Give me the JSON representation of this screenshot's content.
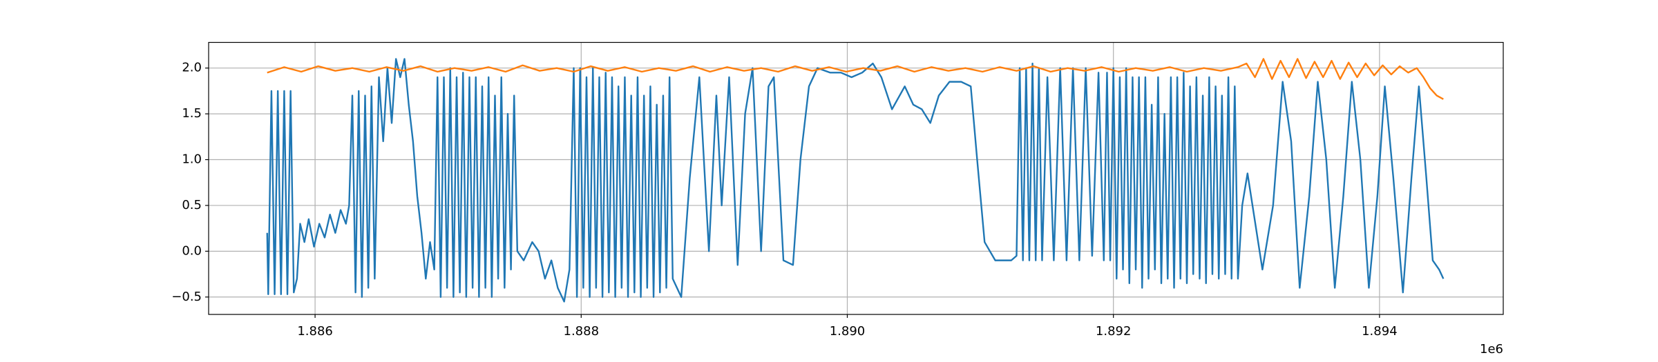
{
  "chart_data": {
    "type": "line",
    "x_offset_label": "1e6",
    "xlim": [
      1885200,
      1894930
    ],
    "ylim": [
      -0.69,
      2.28
    ],
    "xticks": [
      {
        "value": 1886000,
        "label": "1.886"
      },
      {
        "value": 1888000,
        "label": "1.888"
      },
      {
        "value": 1890000,
        "label": "1.890"
      },
      {
        "value": 1892000,
        "label": "1.892"
      },
      {
        "value": 1894000,
        "label": "1.894"
      }
    ],
    "yticks": [
      {
        "value": -0.5,
        "label": "−0.5"
      },
      {
        "value": 0,
        "label": "0.0"
      },
      {
        "value": 0.5,
        "label": "0.5"
      },
      {
        "value": 1,
        "label": "1.0"
      },
      {
        "value": 1.5,
        "label": "1.5"
      },
      {
        "value": 2,
        "label": "2.0"
      }
    ],
    "grid": true,
    "series": [
      {
        "color": "#1f77b4",
        "x": [
          1885640,
          1885648,
          1885672,
          1885696,
          1885720,
          1885744,
          1885768,
          1885792,
          1885816,
          1885840,
          1885864,
          1885888,
          1885920,
          1885952,
          1885992,
          1886032,
          1886072,
          1886112,
          1886152,
          1886192,
          1886232,
          1886256,
          1886280,
          1886304,
          1886328,
          1886352,
          1886376,
          1886400,
          1886424,
          1886448,
          1886480,
          1886512,
          1886544,
          1886576,
          1886608,
          1886640,
          1886672,
          1886704,
          1886736,
          1886768,
          1886800,
          1886832,
          1886864,
          1886896,
          1886920,
          1886944,
          1886968,
          1886992,
          1887016,
          1887040,
          1887064,
          1887088,
          1887112,
          1887136,
          1887160,
          1887184,
          1887208,
          1887232,
          1887256,
          1887280,
          1887304,
          1887328,
          1887352,
          1887376,
          1887400,
          1887424,
          1887448,
          1887472,
          1887496,
          1887520,
          1887568,
          1887632,
          1887680,
          1887728,
          1887776,
          1887824,
          1887872,
          1887912,
          1887944,
          1887968,
          1887992,
          1888016,
          1888040,
          1888064,
          1888088,
          1888112,
          1888136,
          1888160,
          1888184,
          1888208,
          1888232,
          1888256,
          1888280,
          1888304,
          1888328,
          1888352,
          1888376,
          1888400,
          1888424,
          1888448,
          1888472,
          1888496,
          1888520,
          1888544,
          1888568,
          1888592,
          1888616,
          1888640,
          1888664,
          1888688,
          1888752,
          1888816,
          1888888,
          1888960,
          1889016,
          1889056,
          1889112,
          1889176,
          1889232,
          1889288,
          1889352,
          1889408,
          1889448,
          1889520,
          1889592,
          1889648,
          1889712,
          1889776,
          1889872,
          1889952,
          1890032,
          1890112,
          1890192,
          1890256,
          1890336,
          1890432,
          1890496,
          1890560,
          1890624,
          1890688,
          1890768,
          1890856,
          1890928,
          1890976,
          1891032,
          1891112,
          1891232,
          1891272,
          1891296,
          1891320,
          1891344,
          1891368,
          1891392,
          1891416,
          1891440,
          1891464,
          1891504,
          1891552,
          1891600,
          1891648,
          1891696,
          1891744,
          1891792,
          1891840,
          1891888,
          1891928,
          1891952,
          1891976,
          1892000,
          1892024,
          1892048,
          1892072,
          1892096,
          1892120,
          1892144,
          1892168,
          1892192,
          1892216,
          1892240,
          1892264,
          1892288,
          1892312,
          1892336,
          1892360,
          1892384,
          1892408,
          1892432,
          1892456,
          1892480,
          1892504,
          1892528,
          1892552,
          1892576,
          1892600,
          1892624,
          1892648,
          1892672,
          1892696,
          1892720,
          1892744,
          1892768,
          1892792,
          1892816,
          1892840,
          1892864,
          1892888,
          1892912,
          1892936,
          1892968,
          1893008,
          1893056,
          1893120,
          1893200,
          1893272,
          1893336,
          1893400,
          1893472,
          1893536,
          1893600,
          1893664,
          1893728,
          1893792,
          1893856,
          1893920,
          1893984,
          1894040,
          1894104,
          1894176,
          1894240,
          1894296,
          1894352,
          1894400,
          1894448,
          1894480
        ],
        "values": [
          0.2,
          -0.47,
          1.75,
          -0.47,
          1.75,
          -0.47,
          1.75,
          -0.47,
          1.75,
          -0.45,
          -0.3,
          0.3,
          0.1,
          0.35,
          0.05,
          0.3,
          0.15,
          0.4,
          0.2,
          0.45,
          0.3,
          0.5,
          1.7,
          -0.45,
          1.75,
          -0.5,
          1.7,
          -0.4,
          1.8,
          -0.3,
          1.9,
          1.2,
          2.0,
          1.4,
          2.1,
          1.9,
          2.1,
          1.6,
          1.2,
          0.6,
          0.2,
          -0.3,
          0.1,
          -0.2,
          1.9,
          -0.5,
          1.9,
          -0.4,
          2.0,
          -0.5,
          1.9,
          -0.45,
          1.95,
          -0.5,
          1.9,
          -0.4,
          1.9,
          -0.5,
          1.8,
          -0.4,
          1.9,
          -0.5,
          1.7,
          -0.3,
          1.9,
          -0.4,
          1.5,
          -0.2,
          1.7,
          0.0,
          -0.1,
          0.1,
          0.0,
          -0.3,
          -0.1,
          -0.4,
          -0.55,
          -0.2,
          2.0,
          -0.5,
          2.0,
          -0.4,
          1.9,
          -0.5,
          2.0,
          -0.4,
          1.9,
          -0.5,
          1.95,
          -0.45,
          1.9,
          -0.5,
          1.8,
          -0.4,
          1.9,
          -0.5,
          1.7,
          -0.45,
          1.9,
          -0.5,
          1.7,
          -0.4,
          1.8,
          -0.5,
          1.6,
          -0.45,
          1.7,
          -0.4,
          1.9,
          -0.3,
          -0.5,
          0.8,
          1.9,
          0.0,
          1.7,
          0.5,
          1.9,
          -0.15,
          1.5,
          2.0,
          0.0,
          1.8,
          1.9,
          -0.1,
          -0.15,
          1.0,
          1.8,
          2.0,
          1.95,
          1.95,
          1.9,
          1.95,
          2.05,
          1.9,
          1.55,
          1.8,
          1.6,
          1.55,
          1.4,
          1.7,
          1.85,
          1.85,
          1.8,
          1.0,
          0.1,
          -0.1,
          -0.1,
          -0.05,
          2.0,
          -0.1,
          2.0,
          -0.1,
          2.05,
          -0.1,
          2.0,
          -0.1,
          1.9,
          -0.1,
          2.0,
          -0.1,
          2.0,
          -0.1,
          2.0,
          -0.05,
          1.95,
          -0.1,
          1.95,
          -0.1,
          2.0,
          -0.3,
          1.9,
          -0.2,
          2.0,
          -0.35,
          1.9,
          -0.2,
          1.9,
          -0.4,
          1.9,
          -0.3,
          1.6,
          -0.2,
          1.9,
          -0.35,
          1.5,
          -0.3,
          1.9,
          -0.4,
          1.9,
          -0.3,
          1.95,
          -0.35,
          1.8,
          -0.25,
          1.9,
          -0.3,
          1.7,
          -0.35,
          1.9,
          -0.25,
          1.8,
          -0.3,
          1.7,
          -0.25,
          1.9,
          -0.3,
          1.8,
          -0.3,
          0.5,
          0.85,
          0.4,
          -0.2,
          0.5,
          1.85,
          1.2,
          -0.4,
          0.6,
          1.85,
          1.0,
          -0.4,
          0.6,
          1.85,
          1.0,
          -0.4,
          0.6,
          1.8,
          0.8,
          -0.45,
          0.8,
          1.8,
          0.8,
          -0.1,
          -0.2,
          -0.3
        ]
      },
      {
        "color": "#ff7f0e",
        "x": [
          1885640,
          1885768,
          1885896,
          1886024,
          1886152,
          1886280,
          1886408,
          1886536,
          1886664,
          1886792,
          1886920,
          1887048,
          1887176,
          1887304,
          1887432,
          1887560,
          1887688,
          1887816,
          1887944,
          1888072,
          1888200,
          1888328,
          1888456,
          1888584,
          1888712,
          1888840,
          1888968,
          1889096,
          1889224,
          1889352,
          1889480,
          1889608,
          1889736,
          1889864,
          1889992,
          1890120,
          1890248,
          1890376,
          1890504,
          1890632,
          1890760,
          1890888,
          1891016,
          1891144,
          1891272,
          1891400,
          1891528,
          1891656,
          1891784,
          1891912,
          1892040,
          1892168,
          1892296,
          1892424,
          1892552,
          1892680,
          1892808,
          1892936,
          1893000,
          1893064,
          1893128,
          1893192,
          1893256,
          1893320,
          1893384,
          1893448,
          1893512,
          1893576,
          1893640,
          1893704,
          1893768,
          1893832,
          1893896,
          1893960,
          1894024,
          1894088,
          1894152,
          1894216,
          1894280,
          1894330,
          1894380,
          1894430,
          1894480
        ],
        "values": [
          1.95,
          2.01,
          1.96,
          2.02,
          1.97,
          2.0,
          1.96,
          2.01,
          1.97,
          2.02,
          1.96,
          2.0,
          1.97,
          2.01,
          1.96,
          2.03,
          1.97,
          2.0,
          1.96,
          2.02,
          1.97,
          2.01,
          1.96,
          2.0,
          1.97,
          2.02,
          1.96,
          2.01,
          1.97,
          2.0,
          1.96,
          2.02,
          1.97,
          2.01,
          1.96,
          2.0,
          1.97,
          2.02,
          1.96,
          2.01,
          1.97,
          2.0,
          1.96,
          2.01,
          1.97,
          2.02,
          1.96,
          2.0,
          1.97,
          2.01,
          1.96,
          2.0,
          1.97,
          2.01,
          1.96,
          2.0,
          1.97,
          2.01,
          2.05,
          1.9,
          2.1,
          1.88,
          2.08,
          1.9,
          2.1,
          1.89,
          2.07,
          1.9,
          2.08,
          1.88,
          2.06,
          1.9,
          2.05,
          1.92,
          2.03,
          1.93,
          2.02,
          1.95,
          2.0,
          1.9,
          1.78,
          1.7,
          1.66
        ]
      }
    ]
  }
}
